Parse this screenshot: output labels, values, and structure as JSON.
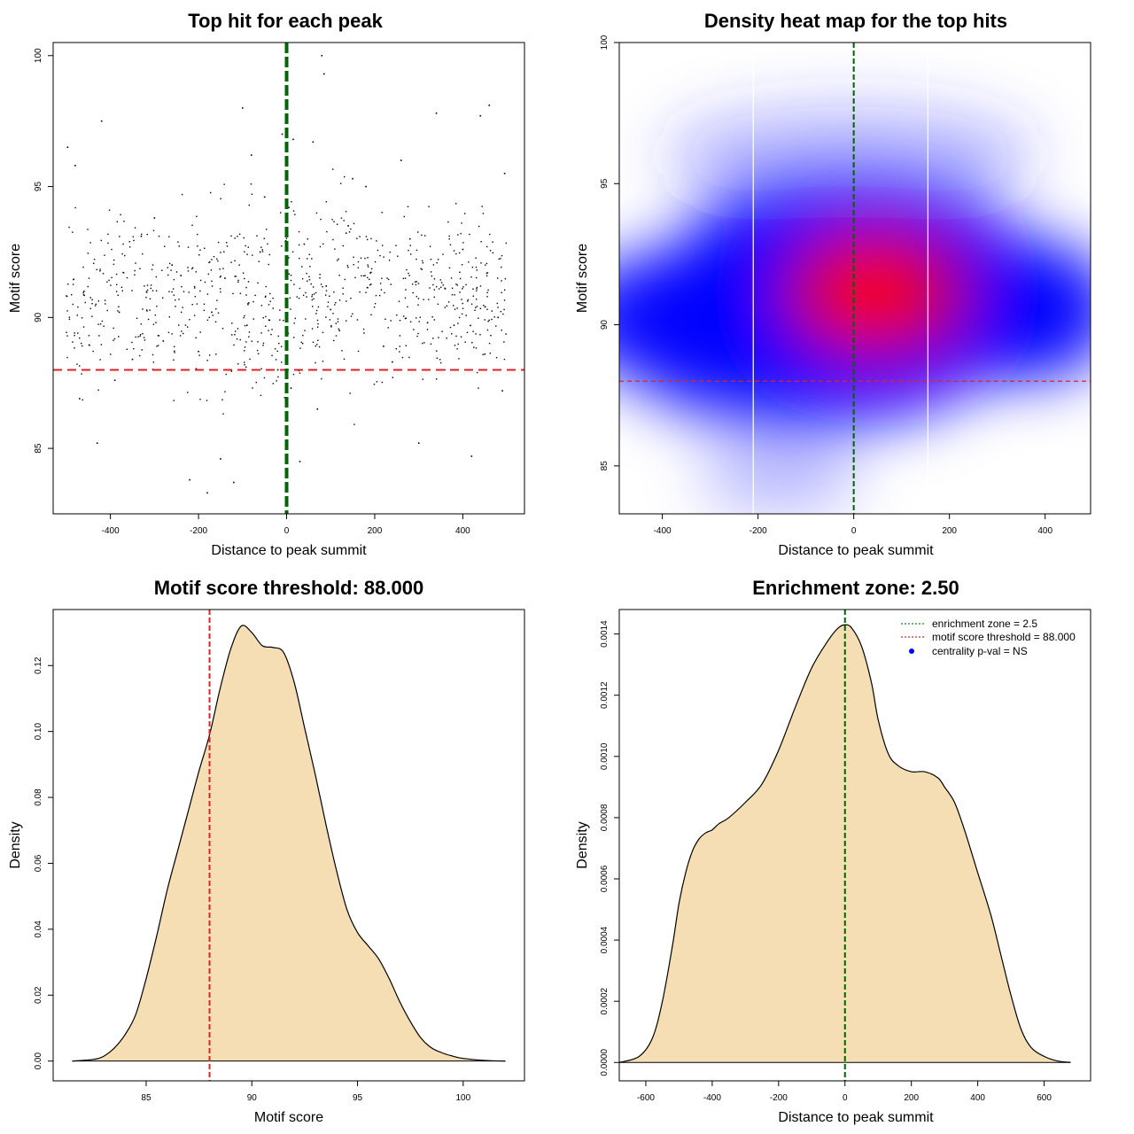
{
  "chart_data": [
    {
      "type": "scatter",
      "title": "Top hit for each peak",
      "xlabel": "Distance to peak summit",
      "ylabel": "Motif score",
      "xlim": [
        -530,
        540
      ],
      "ylim": [
        82.5,
        100.5
      ],
      "xticks": [
        -400,
        -200,
        0,
        200,
        400
      ],
      "yticks": [
        85,
        90,
        95,
        100
      ],
      "hlines": [
        {
          "y": 88,
          "color": "#d62728",
          "style": "dashed"
        }
      ],
      "vlines": [
        {
          "x": 0,
          "color": "#006400",
          "style": "dashed"
        }
      ],
      "points_note": "approx. 900 top-hit points spread over x -500..500, y 83..100, densest near x=0, y~91",
      "series": [
        {
          "name": "top hits",
          "x": [
            -497,
            -480,
            -460,
            -420,
            -380,
            -350,
            -300,
            -260,
            -220,
            -180,
            -150,
            -120,
            -100,
            -80,
            -60,
            -40,
            -20,
            -10,
            5,
            15,
            30,
            60,
            80,
            85,
            90,
            120,
            150,
            180,
            220,
            260,
            300,
            340,
            380,
            420,
            440,
            460,
            480,
            495,
            -470,
            -430,
            -390,
            -330,
            -280,
            -240,
            -200,
            -170,
            -140,
            -90,
            -50,
            10,
            40,
            70,
            100,
            140,
            190,
            240,
            280,
            320,
            360,
            400,
            450,
            490
          ],
          "y": [
            96.5,
            95.8,
            91.0,
            97.5,
            90.2,
            88.4,
            93.8,
            92.0,
            83.8,
            83.3,
            84.6,
            83.7,
            98.0,
            96.2,
            92.5,
            89.9,
            88.0,
            97.0,
            94.2,
            96.8,
            84.5,
            96.7,
            100.0,
            99.3,
            91.2,
            89.5,
            95.3,
            95.0,
            88.9,
            96.0,
            85.2,
            97.8,
            89.7,
            84.7,
            97.7,
            98.1,
            90.0,
            95.5,
            86.9,
            85.2,
            87.6,
            93.1,
            89.1,
            91.6,
            88.7,
            90.2,
            91.5,
            89.7,
            94.6,
            87.3,
            92.8,
            86.5,
            90.3,
            93.5,
            91.7,
            88.3,
            93.0,
            89.8,
            91.1,
            92.6,
            88.6,
            87.2
          ]
        }
      ]
    },
    {
      "type": "heatmap",
      "title": "Density heat map for the top hits",
      "xlabel": "Distance to peak summit",
      "ylabel": "Motif score",
      "xlim": [
        -490,
        495
      ],
      "ylim": [
        83.3,
        100
      ],
      "xticks": [
        -400,
        -200,
        0,
        200,
        400
      ],
      "yticks": [
        85,
        90,
        95,
        100
      ],
      "peak": {
        "x": 40,
        "y": 90.9
      },
      "color_scale": [
        "#ffffff",
        "#0000ff",
        "#ff0000"
      ],
      "hlines": [
        {
          "y": 88,
          "color": "#d62728",
          "style": "dashed"
        }
      ],
      "vlines": [
        {
          "x": 0,
          "color": "#006400",
          "style": "dashed"
        },
        {
          "x": -210,
          "color": "#ffffff",
          "style": "solid"
        },
        {
          "x": 155,
          "color": "#ffffff",
          "style": "solid"
        }
      ]
    },
    {
      "type": "area",
      "title": "Motif score threshold: 88.000",
      "xlabel": "Motif score",
      "ylabel": "Density",
      "xlim": [
        80.6,
        102.9
      ],
      "ylim": [
        -0.006,
        0.137
      ],
      "xticks": [
        85,
        90,
        95,
        100
      ],
      "yticks": [
        0.0,
        0.02,
        0.04,
        0.06,
        0.08,
        0.1,
        0.12
      ],
      "ytick_labels": [
        "0.00",
        "0.02",
        "0.04",
        "0.06",
        "0.08",
        "0.10",
        "0.12"
      ],
      "fill": "#f5deb3",
      "vlines": [
        {
          "x": 88,
          "color": "#d62728",
          "style": "dashed"
        }
      ],
      "x": [
        81.5,
        82.5,
        83,
        83.5,
        84,
        84.5,
        85,
        85.5,
        86,
        86.5,
        87,
        87.5,
        88,
        88.5,
        89,
        89.5,
        90,
        90.5,
        91,
        91.5,
        92,
        92.5,
        93,
        93.5,
        94,
        94.5,
        95,
        95.5,
        96,
        96.5,
        97,
        97.5,
        98,
        98.5,
        99,
        99.5,
        100,
        101,
        102
      ],
      "y": [
        0.0,
        0.0005,
        0.0015,
        0.004,
        0.008,
        0.014,
        0.025,
        0.038,
        0.052,
        0.064,
        0.076,
        0.088,
        0.099,
        0.113,
        0.125,
        0.132,
        0.13,
        0.126,
        0.1255,
        0.124,
        0.115,
        0.101,
        0.087,
        0.072,
        0.058,
        0.046,
        0.039,
        0.035,
        0.031,
        0.025,
        0.018,
        0.012,
        0.007,
        0.004,
        0.0025,
        0.0015,
        0.0008,
        0.0002,
        0.0
      ]
    },
    {
      "type": "area",
      "title": "Enrichment zone: 2.50",
      "xlabel": "Distance to peak summit",
      "ylabel": "Density",
      "xlim": [
        -680,
        740
      ],
      "ylim": [
        -6e-05,
        0.00148
      ],
      "xticks": [
        -600,
        -400,
        -200,
        0,
        200,
        400,
        600
      ],
      "yticks": [
        0.0,
        0.0002,
        0.0004,
        0.0006,
        0.0008,
        0.001,
        0.0012,
        0.0014
      ],
      "ytick_labels": [
        "0.0000",
        "0.0002",
        "0.0004",
        "0.0006",
        "0.0008",
        "0.0010",
        "0.0012",
        "0.0014"
      ],
      "fill": "#f5deb3",
      "vlines": [
        {
          "x": 0,
          "color": "#006400",
          "style": "dashed"
        }
      ],
      "x": [
        -680,
        -620,
        -580,
        -550,
        -520,
        -500,
        -480,
        -460,
        -440,
        -420,
        -400,
        -380,
        -350,
        -300,
        -250,
        -200,
        -150,
        -100,
        -50,
        -20,
        0,
        20,
        50,
        80,
        100,
        130,
        160,
        200,
        240,
        280,
        300,
        330,
        360,
        400,
        440,
        470,
        500,
        530,
        560,
        600,
        640,
        680
      ],
      "y": [
        0.0,
        2e-05,
        8e-05,
        0.0002,
        0.00038,
        0.00052,
        0.00062,
        0.00069,
        0.00073,
        0.00075,
        0.00076,
        0.00078,
        0.0008,
        0.00085,
        0.00091,
        0.00102,
        0.00116,
        0.00129,
        0.00138,
        0.00142,
        0.00143,
        0.00142,
        0.00136,
        0.00124,
        0.00112,
        0.00101,
        0.00097,
        0.00095,
        0.00095,
        0.00093,
        0.0009,
        0.00085,
        0.00076,
        0.00062,
        0.00048,
        0.00035,
        0.00022,
        0.00011,
        5e-05,
        2e-05,
        5e-06,
        0.0
      ],
      "legend": {
        "position": "top-right",
        "items": [
          {
            "label": "enrichment zone = 2.5",
            "color": "#228b22",
            "marker": "dotted-line"
          },
          {
            "label": "motif score threshold = 88.000",
            "color": "#d62728",
            "marker": "dotted-line"
          },
          {
            "label": "centrality p-val = NS",
            "color": "#0000ff",
            "marker": "dot"
          }
        ]
      }
    }
  ]
}
